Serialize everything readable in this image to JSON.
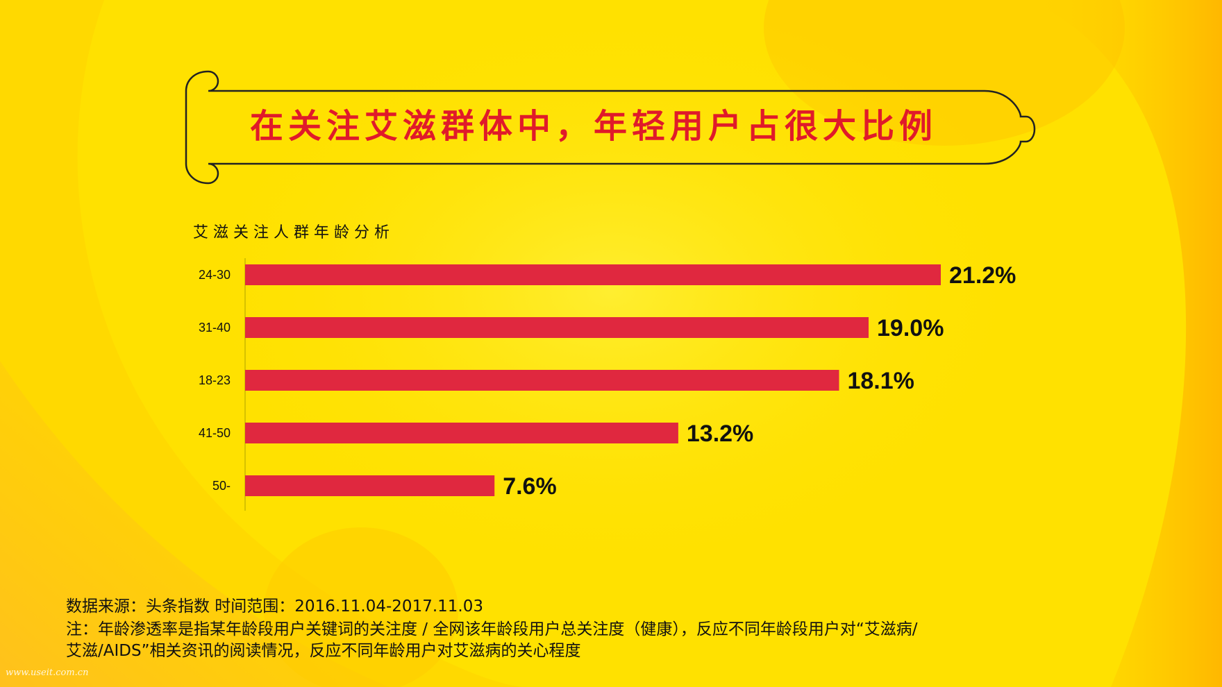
{
  "page": {
    "title": "在关注艾滋群体中，年轻用户占很大比例",
    "chart_subtitle": "艾滋关注人群年龄分析",
    "footer_source": "数据来源：头条指数 时间范围：2016.11.04-2017.11.03",
    "footer_note_1": "注：年龄渗透率是指某年龄段用户关键词的关注度 / 全网该年龄段用户总关注度（健康），反应不同年龄段用户对“艾滋病/",
    "footer_note_2": "艾滋/AIDS”相关资讯的阅读情况，反应不同年龄用户对艾滋病的关心程度",
    "watermark": "www.useit.com.cn"
  },
  "colors": {
    "background": "#ffe100",
    "bar": "#e0283f",
    "title_text": "#e01a2a",
    "outline": "#222222"
  },
  "chart_data": {
    "type": "bar",
    "orientation": "horizontal",
    "title": "艾滋关注人群年龄分析",
    "xlabel": "",
    "ylabel": "",
    "categories": [
      "24-30",
      "31-40",
      "18-23",
      "41-50",
      "50-"
    ],
    "values": [
      21.2,
      19.0,
      18.1,
      13.2,
      7.6
    ],
    "value_labels": [
      "21.2%",
      "19.0%",
      "18.1%",
      "13.2%",
      "7.6%"
    ],
    "unit": "%",
    "xlim": [
      0,
      21.2
    ],
    "grid": false,
    "legend": "none"
  }
}
